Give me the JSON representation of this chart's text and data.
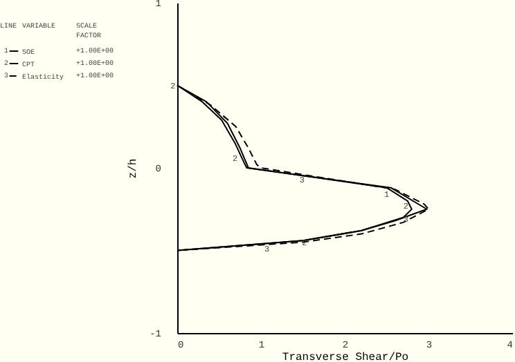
{
  "chart_data": {
    "type": "line",
    "xlabel": "Transverse Shear/Po",
    "ylabel": "z/h",
    "xlim": [
      0,
      4
    ],
    "xticks": [
      0,
      1,
      2,
      3,
      4
    ],
    "ylim": [
      -1,
      1
    ],
    "yticks": [
      -1,
      0,
      1
    ],
    "grid": false,
    "legend": "top left",
    "series": [
      {
        "name": "SOE",
        "color": "#000000",
        "line_style": "solid",
        "x": [
          0,
          0.35,
          0.6,
          0.75,
          0.85,
          2.5,
          2.75,
          2.8,
          2.7,
          2.2,
          1.5,
          0
        ],
        "values": [
          0.5,
          0.4,
          0.27,
          0.12,
          0,
          -0.12,
          -0.2,
          -0.25,
          -0.3,
          -0.38,
          -0.44,
          -0.5
        ]
      },
      {
        "name": "CPT",
        "color": "#000000",
        "line_style": "solid",
        "x": [
          0,
          0.3,
          0.53,
          0.69,
          0.8,
          0.83,
          2.55,
          2.98,
          2.6,
          2.2,
          1.5,
          0
        ],
        "values": [
          0.5,
          0.4,
          0.29,
          0.15,
          0.03,
          0,
          -0.12,
          -0.25,
          -0.32,
          -0.38,
          -0.44,
          -0.5
        ]
      },
      {
        "name": "Elasticity",
        "color": "#000000",
        "line_style": "dashed",
        "x": [
          0,
          0.4,
          0.7,
          0.85,
          0.95,
          1.0,
          2.6,
          2.95,
          3.0,
          2.7,
          2.2,
          1.5,
          0
        ],
        "values": [
          0.5,
          0.38,
          0.25,
          0.12,
          0.02,
          0,
          -0.13,
          -0.22,
          -0.25,
          -0.33,
          -0.4,
          -0.45,
          -0.5
        ]
      }
    ],
    "annotations": [
      "LINE",
      "VARIABLE",
      "SCALE FACTOR",
      "1",
      "+1.00E+00",
      "2",
      "+1.00E+00",
      "3",
      "+1.00E+00",
      {
        "text": "2",
        "x": 0.69,
        "y": 0.06
      },
      {
        "text": "3",
        "x": 1.49,
        "y": -0.07
      },
      {
        "text": "1",
        "x": 2.5,
        "y": -0.16
      },
      {
        "text": "2",
        "x": 2.73,
        "y": -0.23
      },
      {
        "text": "3",
        "x": 2.73,
        "y": -0.31
      },
      {
        "text": "2",
        "x": 1.52,
        "y": -0.45
      },
      {
        "text": "3",
        "x": 1.07,
        "y": -0.49
      },
      {
        "text": "2",
        "x": -0.05,
        "y": 0.5
      }
    ]
  }
}
